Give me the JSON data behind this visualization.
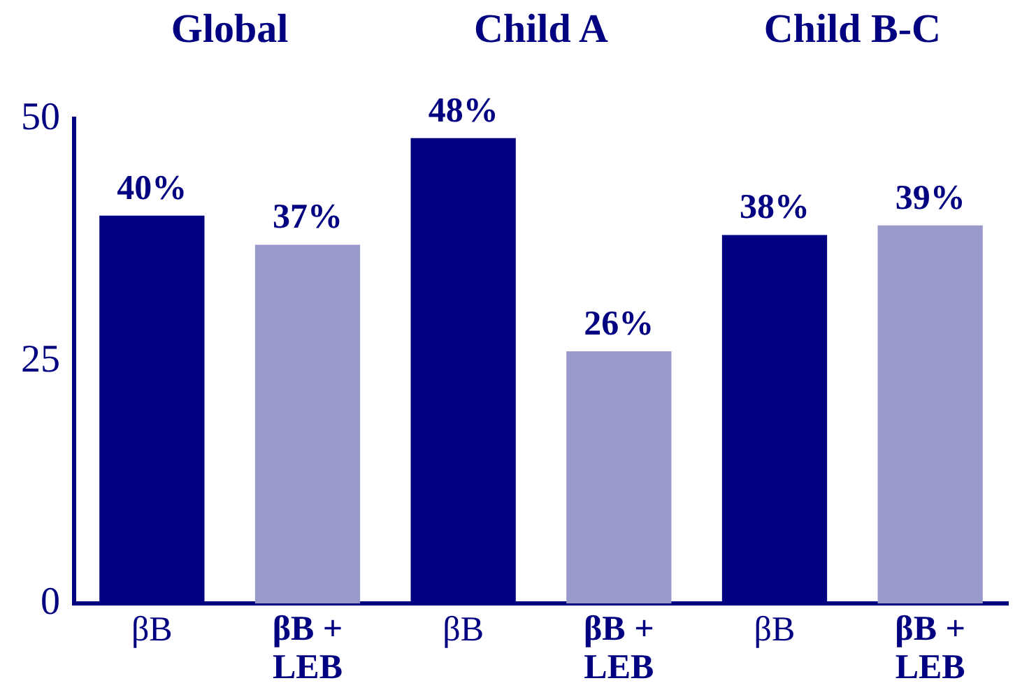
{
  "chart_data": {
    "type": "bar",
    "categories": [
      "βB",
      "βB + LEB",
      "βB",
      "βB + LEB",
      "βB",
      "βB + LEB"
    ],
    "values": [
      40,
      37,
      48,
      26,
      38,
      39
    ],
    "colors": [
      "#000080",
      "#9999cc",
      "#000080",
      "#9999cc",
      "#000080",
      "#9999cc"
    ],
    "value_labels": [
      "40%",
      "37%",
      "48%",
      "26%",
      "38%",
      "39%"
    ],
    "annotations": [
      "Global",
      "Child A",
      "Child B-C"
    ],
    "ylim": [
      0,
      50
    ],
    "yticks": [
      0,
      25,
      50
    ],
    "grid": false,
    "legend": false
  }
}
